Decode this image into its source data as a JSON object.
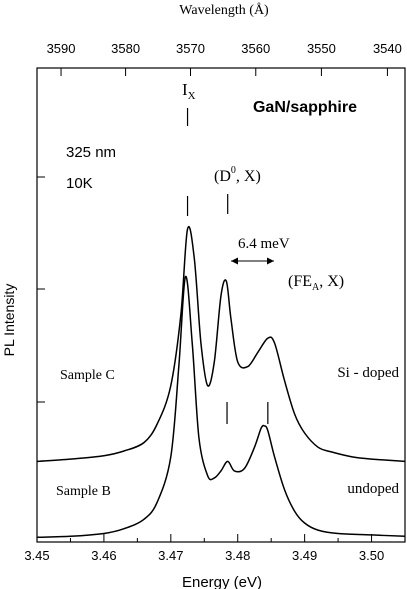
{
  "chart_data": {
    "type": "line",
    "top_axis": {
      "label": "Wavelength (Å)",
      "ticks": [
        3590,
        3580,
        3570,
        3560,
        3550,
        3540
      ]
    },
    "x_axis": {
      "label": "Energy  (eV)",
      "range": [
        3.45,
        3.505
      ],
      "ticks": [
        3.45,
        3.46,
        3.47,
        3.48,
        3.49,
        3.5
      ],
      "tick_labels": [
        "3.45",
        "3.46",
        "3.47",
        "3.48",
        "3.49",
        "3.50"
      ]
    },
    "y_axis": {
      "label": "PL Intensity",
      "range": [
        0,
        1
      ]
    },
    "series": [
      {
        "name": "Sample C",
        "label_right": "Si - doped",
        "x": [
          3.45,
          3.455,
          3.46,
          3.463,
          3.466,
          3.468,
          3.47,
          3.4715,
          3.4725,
          3.4735,
          3.4745,
          3.4755,
          3.4765,
          3.4775,
          3.4783,
          3.479,
          3.48,
          3.4815,
          3.483,
          3.4845,
          3.4855,
          3.487,
          3.4885,
          3.49,
          3.492,
          3.494,
          3.497,
          3.5,
          3.505
        ],
        "y": [
          0.17,
          0.175,
          0.182,
          0.192,
          0.21,
          0.25,
          0.33,
          0.48,
          0.66,
          0.6,
          0.42,
          0.33,
          0.38,
          0.52,
          0.55,
          0.47,
          0.38,
          0.37,
          0.4,
          0.43,
          0.42,
          0.34,
          0.27,
          0.23,
          0.2,
          0.19,
          0.18,
          0.175,
          0.17
        ]
      },
      {
        "name": "Sample B",
        "label_right": "undoped",
        "x": [
          3.45,
          3.455,
          3.46,
          3.463,
          3.466,
          3.468,
          3.47,
          3.4712,
          3.4722,
          3.4732,
          3.4742,
          3.4755,
          3.4765,
          3.4775,
          3.4785,
          3.4795,
          3.481,
          3.4825,
          3.4835,
          3.484,
          3.4845,
          3.4855,
          3.487,
          3.4885,
          3.49,
          3.492,
          3.495,
          3.5,
          3.505
        ],
        "y": [
          0.01,
          0.012,
          0.018,
          0.028,
          0.048,
          0.085,
          0.18,
          0.37,
          0.56,
          0.42,
          0.22,
          0.14,
          0.135,
          0.15,
          0.17,
          0.15,
          0.155,
          0.2,
          0.24,
          0.245,
          0.235,
          0.18,
          0.11,
          0.065,
          0.04,
          0.025,
          0.018,
          0.015,
          0.012
        ]
      }
    ],
    "annotations": {
      "title": "GaN/sapphire",
      "excitation": "325 nm",
      "temperature": "10K",
      "peak_ix": "I",
      "peak_ix_sub": "X",
      "peak_d0x_a": "(D",
      "peak_d0x_sup": "0",
      "peak_d0x_b": ", X)",
      "peak_fex_a": "(FE",
      "peak_fex_sub": "A",
      "peak_fex_b": ", X)",
      "splitting": "6.4 meV"
    }
  }
}
